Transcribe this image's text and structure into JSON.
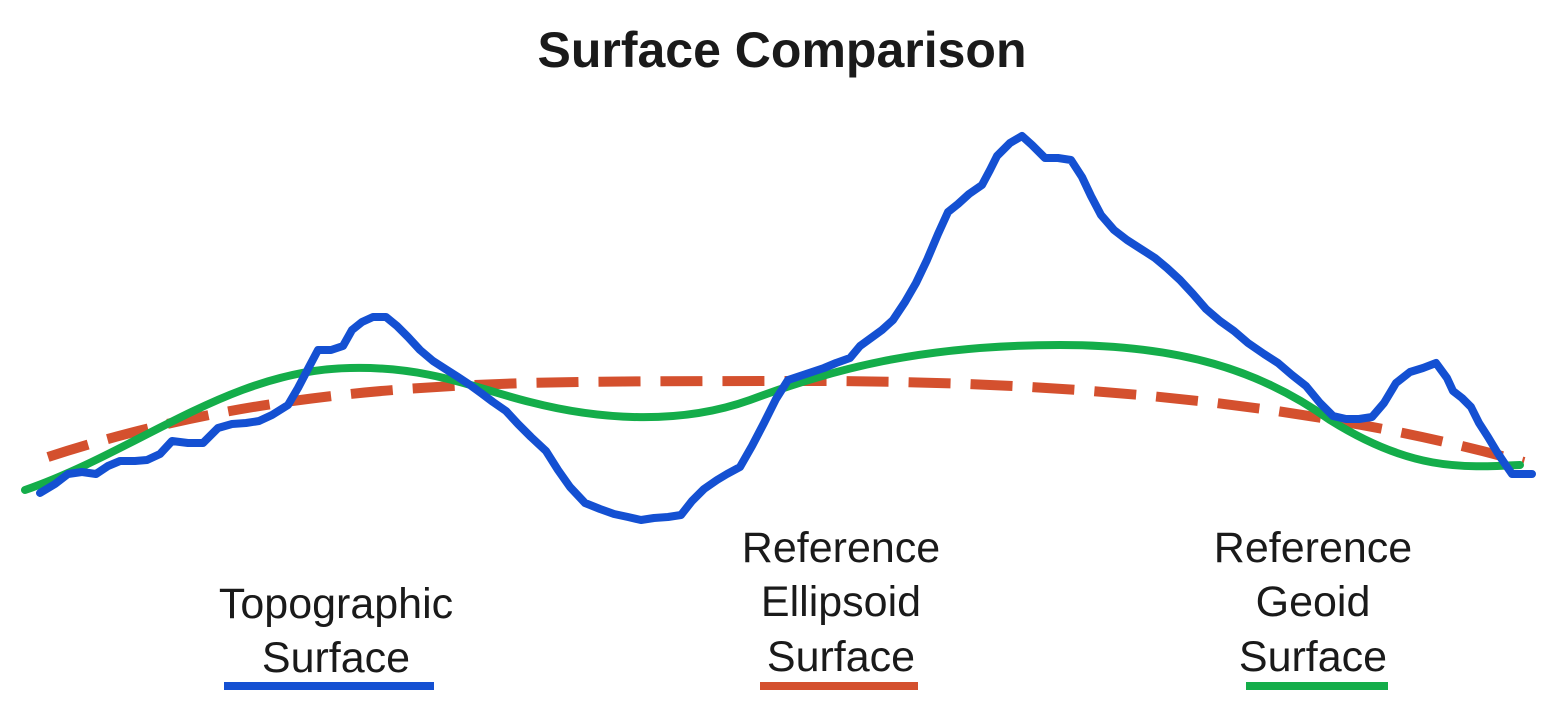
{
  "title": "Surface Comparison",
  "colors": {
    "topographic": "#1450d2",
    "ellipsoid": "#d4502e",
    "geoid": "#14ad4a",
    "text": "#1a1a1a",
    "background": "#ffffff"
  },
  "legend": {
    "topographic": {
      "lines": [
        "Topographic",
        "Surface"
      ],
      "line_style": "solid"
    },
    "ellipsoid": {
      "lines": [
        "Reference",
        "Ellipsoid",
        "Surface"
      ],
      "line_style": "dashed"
    },
    "geoid": {
      "lines": [
        "Reference",
        "Geoid",
        "Surface"
      ],
      "line_style": "solid"
    }
  }
}
